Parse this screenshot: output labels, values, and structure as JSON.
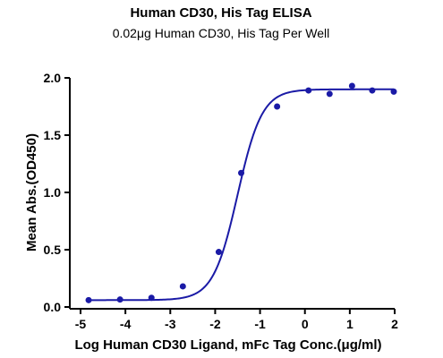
{
  "chart_data": {
    "type": "scatter",
    "title": "Human CD30, His Tag ELISA",
    "subtitle": "0.02μg Human CD30, His Tag Per Well",
    "xlabel": "Log Human CD30 Ligand, mFc Tag Conc.(μg/ml)",
    "ylabel": "Mean Abs.(OD450)",
    "xlim": [
      -5,
      2
    ],
    "ylim": [
      0,
      2.0
    ],
    "x_ticks": [
      "-5",
      "-4",
      "-3",
      "-2",
      "-1",
      "0",
      "1",
      "2"
    ],
    "y_ticks": [
      "0.0",
      "0.5",
      "1.0",
      "1.5",
      "2.0"
    ],
    "grid": false,
    "legend": "none",
    "color": "#1a1aa6",
    "series": [
      {
        "x": [
          -4.82,
          -4.12,
          -3.42,
          -2.72,
          -1.92,
          -1.42,
          -0.62,
          0.08,
          0.55,
          1.05,
          1.5,
          1.98
        ],
        "y": [
          0.06,
          0.065,
          0.08,
          0.18,
          0.48,
          1.17,
          1.75,
          1.89,
          1.86,
          1.93,
          1.89,
          1.88
        ]
      }
    ],
    "fit": {
      "model": "4PL",
      "bottom": 0.06,
      "top": 1.9,
      "logEC50": -1.5,
      "hill": 1.6
    }
  }
}
